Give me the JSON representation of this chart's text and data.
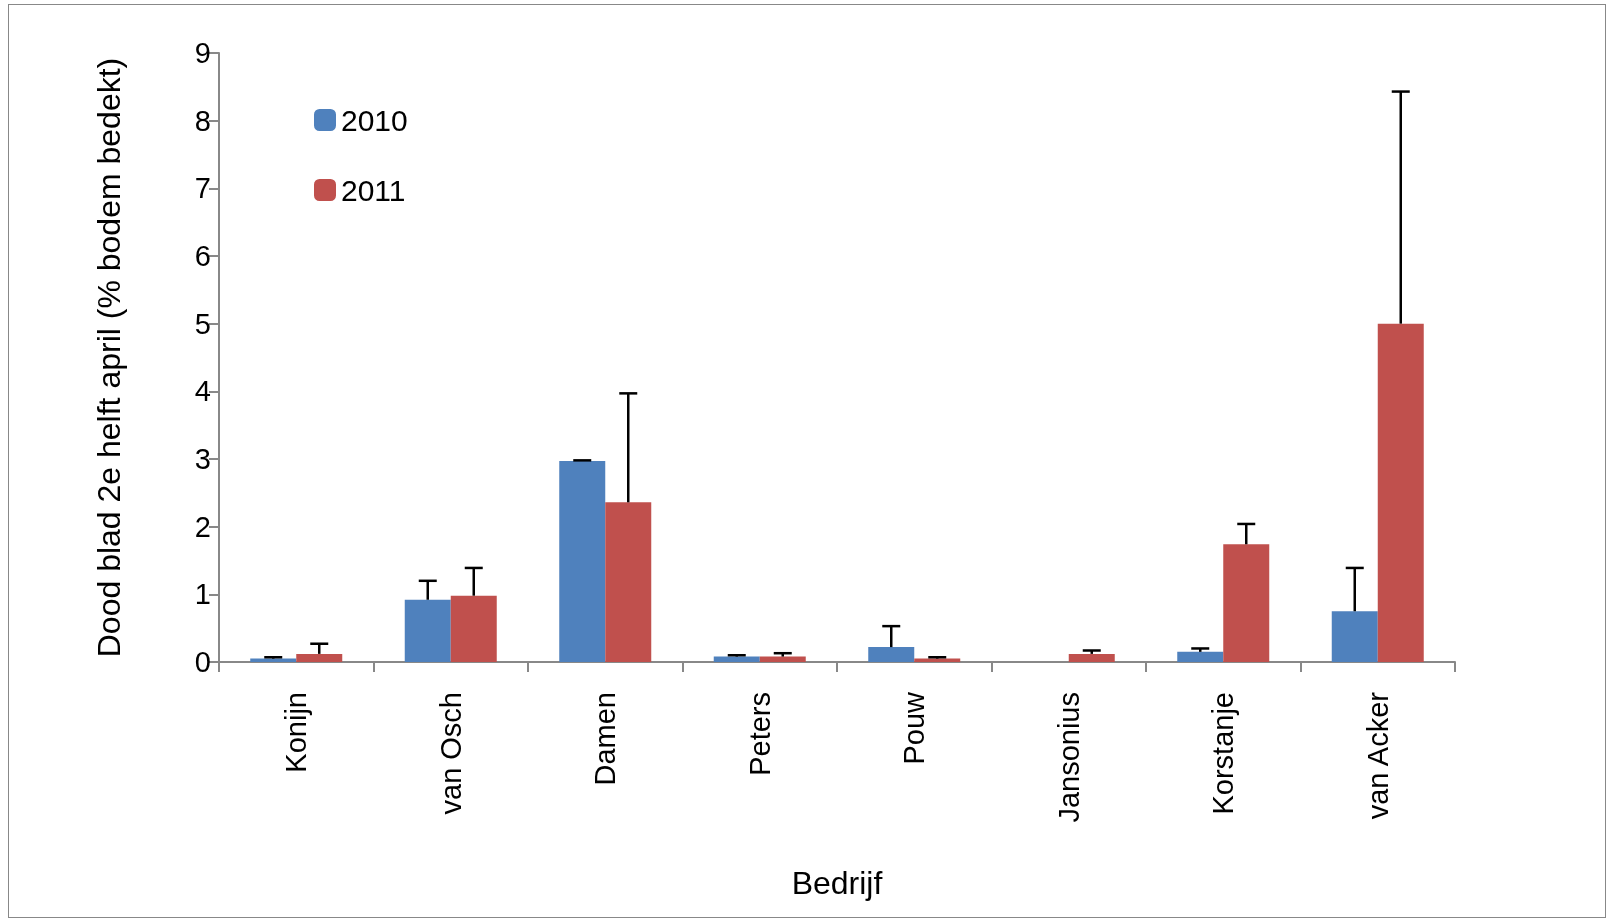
{
  "chart_data": {
    "type": "bar",
    "xlabel": "Bedrijf",
    "ylabel": "Dood blad 2e helft april (% bodem bedekt)",
    "categories": [
      "Konijn",
      "van Osch",
      "Damen",
      "Peters",
      "Pouw",
      "Jansonius",
      "Korstanje",
      "van Acker"
    ],
    "series": [
      {
        "name": "2010",
        "color": "#4f81bd",
        "values": [
          0.05,
          0.92,
          2.97,
          0.08,
          0.22,
          0,
          0.15,
          0.75
        ],
        "errors": [
          [
            0.05,
            0.07
          ],
          [
            0.92,
            1.2
          ],
          [
            2.97,
            2.98
          ],
          [
            0.08,
            0.1
          ],
          [
            0.22,
            0.53
          ],
          null,
          [
            0.15,
            0.2
          ],
          [
            0.75,
            1.39
          ]
        ]
      },
      {
        "name": "2011",
        "color": "#c0504d",
        "values": [
          0.12,
          0.98,
          2.36,
          0.08,
          0.05,
          0.12,
          1.74,
          5.0
        ],
        "errors": [
          [
            0.12,
            0.27
          ],
          [
            0.98,
            1.39
          ],
          [
            2.36,
            3.97
          ],
          [
            0.08,
            0.13
          ],
          [
            0.05,
            0.07
          ],
          [
            0.12,
            0.17
          ],
          [
            1.74,
            2.04
          ],
          [
            5.0,
            8.43
          ]
        ]
      }
    ],
    "ylim": [
      0,
      9
    ],
    "yticks": [
      0,
      1,
      2,
      3,
      4,
      5,
      6,
      7,
      8,
      9
    ],
    "grid": false,
    "legend": "top left"
  }
}
